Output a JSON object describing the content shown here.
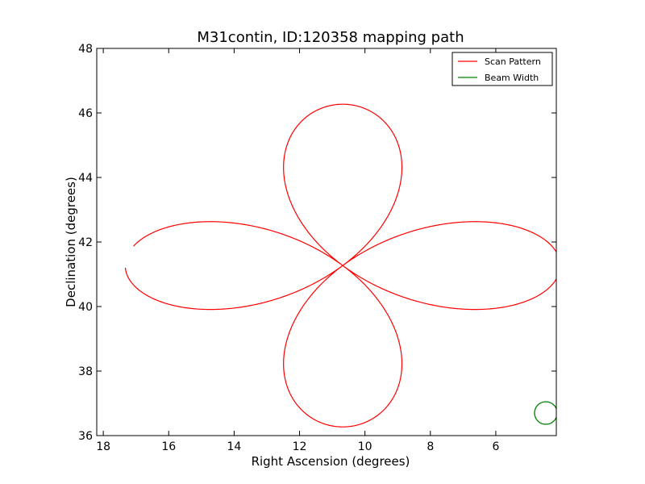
{
  "chart_data": {
    "type": "line",
    "title": "M31contin, ID:120358 mapping path",
    "xlabel": "Right Ascension (degrees)",
    "ylabel": "Declination (degrees)",
    "xlim": [
      18.2,
      4.15
    ],
    "ylim": [
      36,
      48
    ],
    "x_ticks": [
      18,
      16,
      14,
      12,
      10,
      8,
      6
    ],
    "y_ticks": [
      36,
      38,
      40,
      42,
      44,
      46,
      48
    ],
    "grid": false,
    "legend_position": "upper right",
    "series": [
      {
        "name": "Scan Pattern",
        "color": "#ff0000",
        "shape": "four-leaf rose",
        "center": [
          10.68,
          41.27
        ],
        "ra_semi_extent": 6.65,
        "dec_semi_extent": 5.0,
        "start": [
          17.05,
          41.87
        ],
        "end": [
          17.35,
          41.2
        ]
      },
      {
        "name": "Beam Width",
        "color": "#008000",
        "shape": "circle",
        "center": [
          4.47,
          36.7
        ],
        "radius": 0.35
      }
    ]
  }
}
